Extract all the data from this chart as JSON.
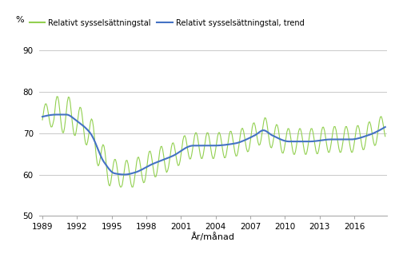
{
  "ylabel": "%",
  "xlabel": "År/månad",
  "legend1": "Relativt sysselsättningstal",
  "legend2": "Relativt sysselsättningstal, trend",
  "line1_color": "#92d050",
  "line2_color": "#4472c4",
  "ylim": [
    50,
    93
  ],
  "yticks": [
    50,
    60,
    70,
    80,
    90
  ],
  "xticks": [
    1989,
    1992,
    1995,
    1998,
    2001,
    2004,
    2007,
    2010,
    2013,
    2016
  ],
  "grid_color": "#c0c0c0",
  "bg_color": "#ffffff",
  "start_year": 1989,
  "start_month": 1,
  "end_year": 2018,
  "end_month": 9
}
